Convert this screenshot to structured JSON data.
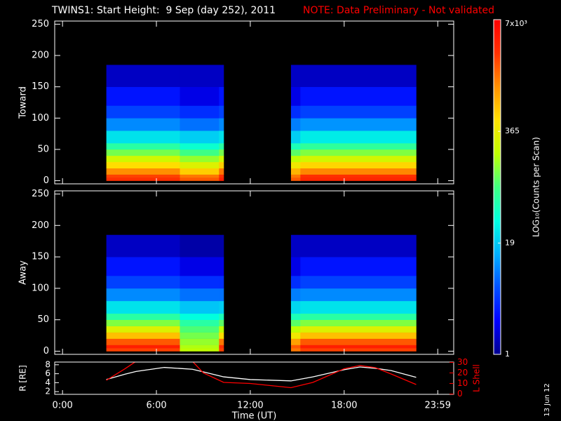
{
  "chart_data": [
    {
      "type": "heatmap",
      "title": "TWINS1: Start Height:  9 Sep (day 252), 2011",
      "note": "NOTE: Data Preliminary - Not validated",
      "ylabel": "Toward",
      "xlim": [
        -0.5,
        25
      ],
      "ylim": [
        -5,
        255
      ],
      "yticks": [
        0,
        50,
        100,
        150,
        200,
        250
      ],
      "xticks": [
        0,
        6,
        12,
        18,
        23.98
      ],
      "time_edges": [
        2.8,
        7.5,
        10.0,
        10.3,
        14.6,
        15.2,
        22.6
      ],
      "height_edges": [
        0,
        5,
        10,
        20,
        30,
        40,
        50,
        60,
        80,
        100,
        120,
        150,
        185
      ],
      "z": [
        [
          3000,
          2000,
          4000,
          null,
          2000,
          3500
        ],
        [
          2500,
          1500,
          3000,
          null,
          1500,
          3000
        ],
        [
          1200,
          600,
          1500,
          null,
          800,
          1300
        ],
        [
          500,
          300,
          600,
          null,
          400,
          550
        ],
        [
          250,
          150,
          250,
          null,
          200,
          260
        ],
        [
          120,
          80,
          120,
          null,
          100,
          130
        ],
        [
          60,
          40,
          60,
          null,
          50,
          65
        ],
        [
          25,
          20,
          25,
          null,
          20,
          28
        ],
        [
          10,
          8,
          10,
          null,
          9,
          11
        ],
        [
          5,
          4,
          5,
          null,
          4,
          5
        ],
        [
          3,
          2,
          3,
          null,
          2,
          3
        ],
        [
          1.5,
          1.5,
          1.5,
          null,
          1.5,
          1.5
        ]
      ]
    },
    {
      "type": "heatmap",
      "ylabel": "Away",
      "xlim": [
        -0.5,
        25
      ],
      "ylim": [
        -5,
        255
      ],
      "yticks": [
        0,
        50,
        100,
        150,
        200,
        250
      ],
      "xticks": [
        0,
        6,
        12,
        18,
        23.98
      ],
      "time_edges": [
        2.8,
        7.5,
        10.0,
        10.3,
        14.6,
        15.2,
        22.6
      ],
      "height_edges": [
        0,
        5,
        10,
        20,
        30,
        40,
        50,
        60,
        80,
        100,
        120,
        150,
        185
      ],
      "z": [
        [
          2500,
          200,
          2500,
          null,
          1500,
          2500
        ],
        [
          4000,
          180,
          3000,
          null,
          2000,
          4000
        ],
        [
          2000,
          150,
          1500,
          null,
          1000,
          2000
        ],
        [
          700,
          120,
          500,
          null,
          400,
          700
        ],
        [
          300,
          90,
          200,
          null,
          200,
          300
        ],
        [
          130,
          60,
          100,
          null,
          100,
          130
        ],
        [
          60,
          35,
          50,
          null,
          50,
          60
        ],
        [
          25,
          18,
          20,
          null,
          22,
          25
        ],
        [
          10,
          8,
          8,
          null,
          9,
          10
        ],
        [
          5,
          4,
          4,
          null,
          4,
          5
        ],
        [
          3,
          2,
          2,
          null,
          2,
          3
        ],
        [
          1.5,
          1.2,
          1.2,
          null,
          1.5,
          1.5
        ]
      ]
    },
    {
      "type": "colorbar",
      "label": "LOG₁₀(Counts per Scan)",
      "lim": [
        1,
        7000
      ],
      "log": true,
      "ticks": [
        1,
        19,
        365,
        {
          "value": 7000,
          "label": "7x10³"
        }
      ],
      "colormap": [
        "#000090",
        "#0000ff",
        "#0050ff",
        "#00b0ff",
        "#00ffe0",
        "#40ff80",
        "#c0ff00",
        "#ffe000",
        "#ff9000",
        "#ff3000",
        "#ff0000"
      ]
    },
    {
      "type": "line",
      "xlabel": "Time (UT)",
      "ylabel": "R [RE]",
      "y2label": "L Shell",
      "xlim": [
        -0.5,
        25
      ],
      "xticks": [
        {
          "value": 0,
          "label": "0:00"
        },
        {
          "value": 6,
          "label": "6:00"
        },
        {
          "value": 12,
          "label": "12:00"
        },
        {
          "value": 18,
          "label": "18:00"
        },
        {
          "value": 23.98,
          "label": "23:59"
        }
      ],
      "ylim": [
        1.4,
        8.6
      ],
      "yticks": [
        2,
        4,
        6,
        8
      ],
      "y2lim": [
        -0.3,
        30.3
      ],
      "y2ticks": [
        0,
        10,
        20,
        30
      ],
      "x": [
        2.8,
        4.0,
        4.7,
        6.5,
        8.3,
        9.0,
        10.3,
        12.0,
        14.6,
        16.0,
        18.0,
        19.0,
        20.0,
        21.0,
        22.6
      ],
      "series": [
        {
          "color": "#ffffff",
          "values": [
            4.7,
            5.9,
            6.5,
            7.4,
            7.0,
            6.4,
            5.3,
            4.7,
            4.4,
            5.3,
            6.9,
            7.5,
            7.2,
            6.7,
            5.2
          ]
        },
        {
          "color": "#ff0000",
          "axis": "y2",
          "values": [
            13,
            24,
            31,
            null,
            31,
            20,
            11,
            10,
            6,
            11,
            24,
            27,
            25,
            19,
            9
          ]
        }
      ]
    }
  ],
  "footer_date": "13 Jun 12"
}
